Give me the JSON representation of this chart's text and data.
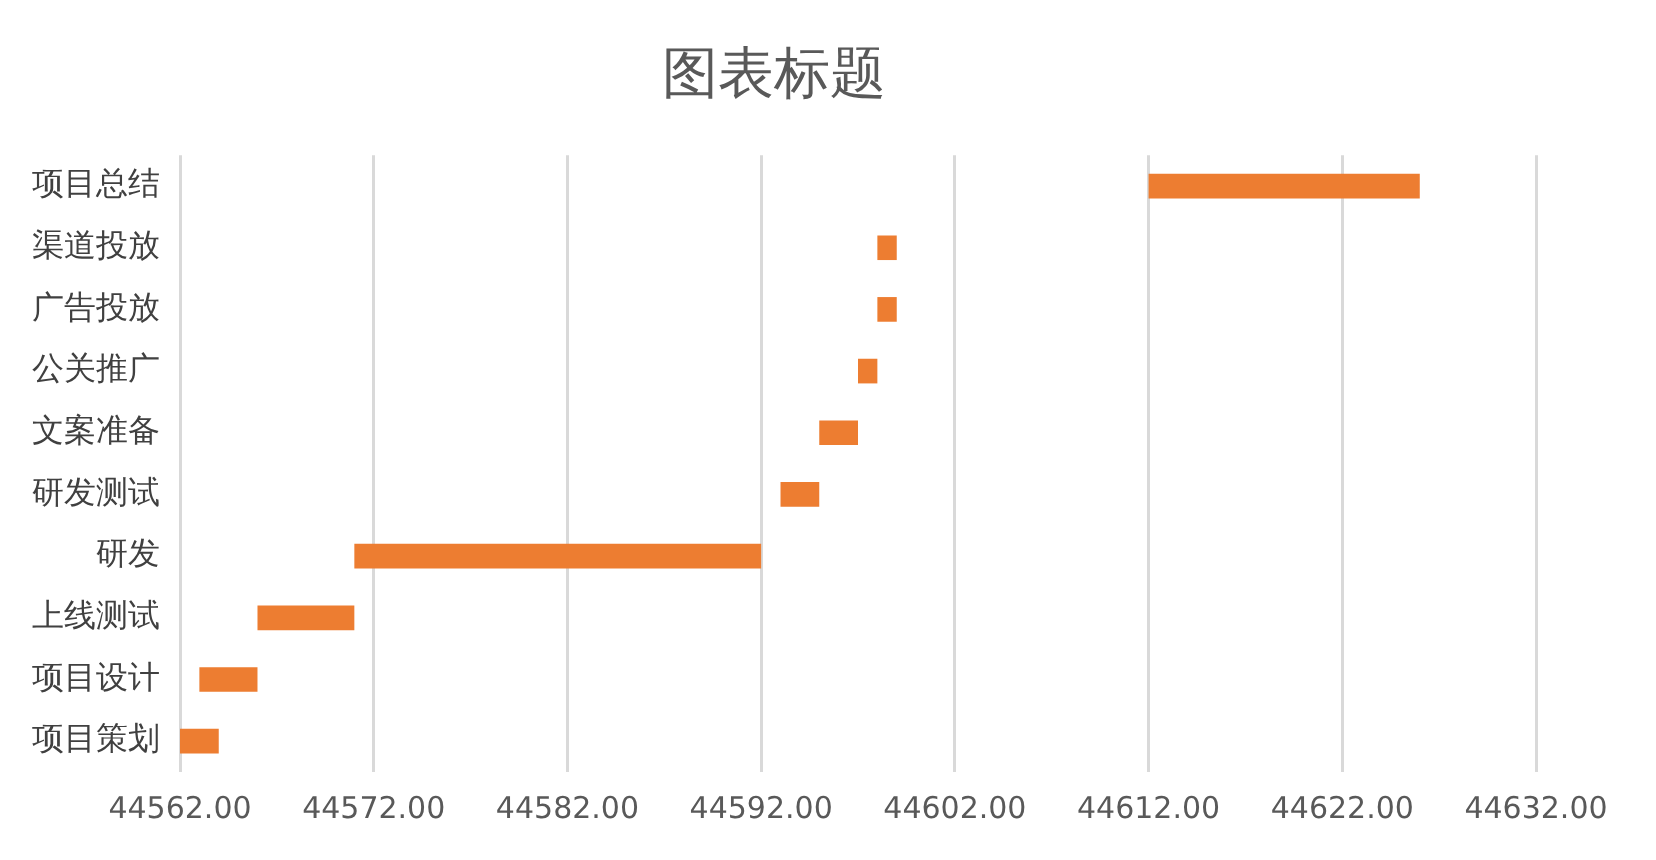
{
  "chart_data": {
    "type": "bar",
    "orientation": "horizontal",
    "title": "图表标题",
    "categories": [
      "项目总结",
      "渠道投放",
      "广告投放",
      "公关推广",
      "文案准备",
      "研发测试",
      "研发",
      "上线测试",
      "项目设计",
      "项目策划"
    ],
    "base": [
      44612,
      44598,
      44598,
      44597,
      44595,
      44593,
      44571,
      44566,
      44563,
      44562
    ],
    "values": [
      14,
      1,
      1,
      1,
      2,
      2,
      21,
      5,
      3,
      2
    ],
    "color": "#ed7d31",
    "xlim": [
      44562,
      44632
    ],
    "xticks": [
      {
        "value": 44562,
        "label": "44562.00"
      },
      {
        "value": 44572,
        "label": "44572.00"
      },
      {
        "value": 44582,
        "label": "44582.00"
      },
      {
        "value": 44592,
        "label": "44592.00"
      },
      {
        "value": 44602,
        "label": "44602.00"
      },
      {
        "value": 44612,
        "label": "44612.00"
      },
      {
        "value": 44622,
        "label": "44622.00"
      },
      {
        "value": 44632,
        "label": "44632.00"
      }
    ],
    "grid": "x",
    "legend": false
  }
}
